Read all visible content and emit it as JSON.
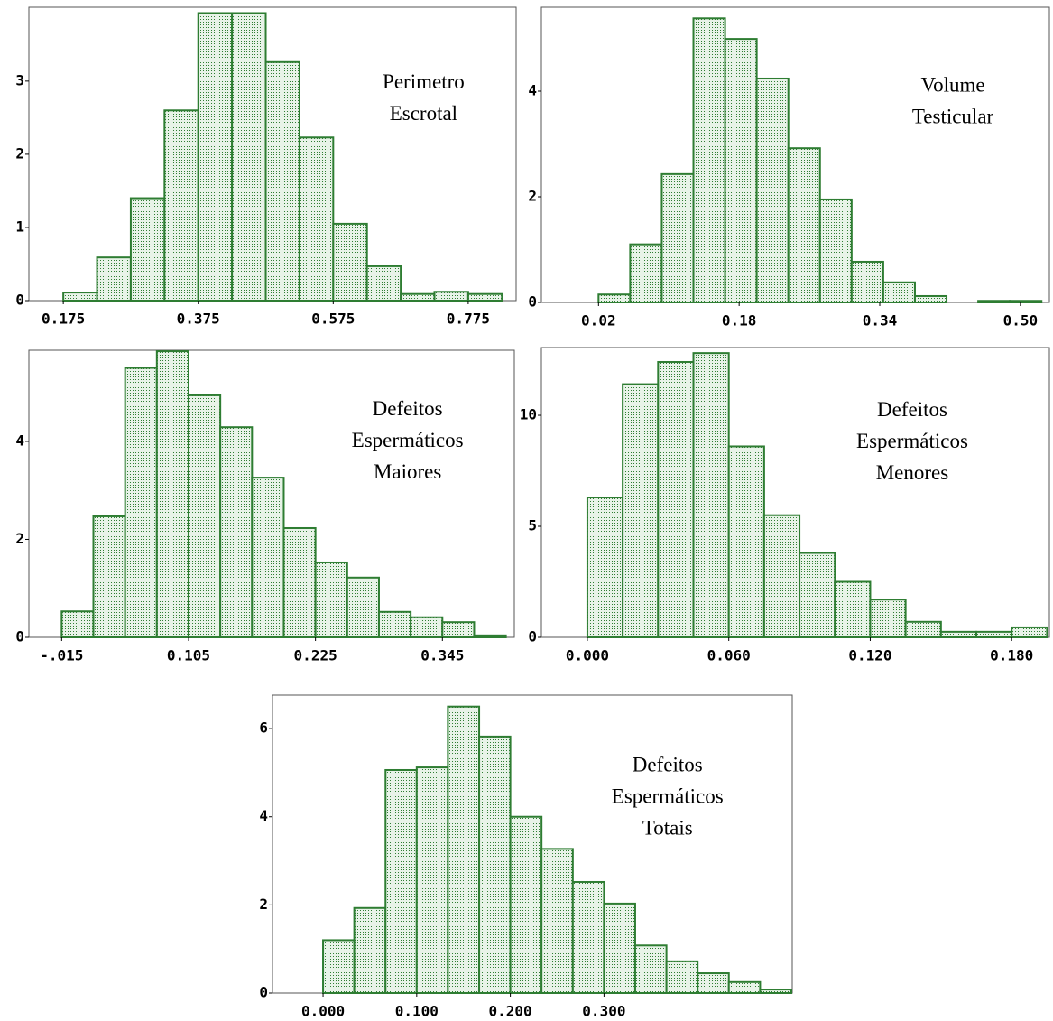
{
  "chart_data": [
    {
      "type": "histogram",
      "annotation": [
        "Perimetro",
        "Escrotal"
      ],
      "color": "#2e7d32",
      "bins": [
        0.175,
        0.225,
        0.275,
        0.325,
        0.375,
        0.425,
        0.475,
        0.525,
        0.575,
        0.625,
        0.675,
        0.725,
        0.775,
        0.825
      ],
      "values": [
        0.11,
        0.59,
        1.4,
        2.6,
        3.93,
        3.93,
        3.26,
        2.23,
        1.05,
        0.47,
        0.09,
        0.12,
        0.09
      ],
      "xlim": [
        0.124,
        0.846
      ],
      "ylim": [
        0,
        4.01
      ],
      "xticks": [
        0.175,
        0.375,
        0.575,
        0.775
      ],
      "yticks": [
        0,
        1,
        2,
        3
      ]
    },
    {
      "type": "histogram",
      "annotation": [
        "Volume",
        "Testicular"
      ],
      "color": "#2e7d32",
      "bins": [
        0.02,
        0.056,
        0.092,
        0.128,
        0.164,
        0.2,
        0.236,
        0.272,
        0.308,
        0.344,
        0.38,
        0.416,
        0.452,
        0.488,
        0.524
      ],
      "values": [
        0.15,
        1.1,
        2.43,
        5.38,
        4.99,
        4.24,
        2.92,
        1.95,
        0.77,
        0.38,
        0.12,
        0,
        0.03,
        0.03
      ],
      "xlim": [
        -0.045,
        0.533
      ],
      "ylim": [
        0,
        5.59
      ],
      "xticks": [
        0.02,
        0.18,
        0.34,
        {
          "value": 0.5,
          "label": "0.50"
        }
      ],
      "yticks": [
        0,
        2,
        4
      ]
    },
    {
      "type": "histogram",
      "annotation": [
        "Defeitos",
        "Espermáticos",
        "Maiores"
      ],
      "color": "#2e7d32",
      "bins": [
        -0.015,
        0.015,
        0.045,
        0.075,
        0.105,
        0.135,
        0.165,
        0.195,
        0.225,
        0.255,
        0.285,
        0.315,
        0.345,
        0.375,
        0.405
      ],
      "values": [
        0.53,
        2.47,
        5.5,
        5.84,
        4.94,
        4.29,
        3.26,
        2.23,
        1.53,
        1.22,
        0.52,
        0.41,
        0.31,
        0.04
      ],
      "xlim": [
        -0.046,
        0.413
      ],
      "ylim": [
        0,
        5.86
      ],
      "xticks": [
        {
          "value": -0.015,
          "label": "-.015"
        },
        0.105,
        0.225,
        0.345
      ],
      "yticks": [
        0,
        2,
        4
      ]
    },
    {
      "type": "histogram",
      "annotation": [
        "Defeitos",
        "Espermáticos",
        "Menores"
      ],
      "color": "#2e7d32",
      "bins": [
        0,
        0.015,
        0.03,
        0.045,
        0.06,
        0.075,
        0.09,
        0.105,
        0.12,
        0.135,
        0.15,
        0.165,
        0.18,
        0.195
      ],
      "values": [
        6.3,
        11.4,
        12.4,
        12.8,
        8.6,
        5.5,
        3.8,
        2.5,
        1.7,
        0.7,
        0.25,
        0.25,
        0.45
      ],
      "xlim": [
        -0.0195,
        0.196
      ],
      "ylim": [
        0,
        13.05
      ],
      "xticks": [
        {
          "value": 0,
          "label": "0.000"
        },
        {
          "value": 0.06,
          "label": "0.060"
        },
        {
          "value": 0.12,
          "label": "0.120"
        },
        {
          "value": 0.18,
          "label": "0.180"
        }
      ],
      "yticks": [
        0,
        5,
        10
      ]
    },
    {
      "type": "histogram",
      "annotation": [
        "Defeitos",
        "Espermáticos",
        "Totais"
      ],
      "color": "#2e7d32",
      "bins": [
        0,
        0.0333,
        0.0667,
        0.1,
        0.1333,
        0.1667,
        0.2,
        0.2333,
        0.2667,
        0.3,
        0.3333,
        0.3667,
        0.4,
        0.4333,
        0.4667,
        0.5
      ],
      "values": [
        1.2,
        1.93,
        5.06,
        5.12,
        6.5,
        5.82,
        4.0,
        3.27,
        2.52,
        2.03,
        1.08,
        0.72,
        0.45,
        0.25,
        0.08
      ],
      "xlim": [
        -0.054,
        0.501
      ],
      "ylim": [
        0,
        6.76
      ],
      "xticks": [
        {
          "value": 0,
          "label": "0.000"
        },
        {
          "value": 0.1,
          "label": "0.100"
        },
        {
          "value": 0.2,
          "label": "0.200"
        },
        {
          "value": 0.3,
          "label": "0.300"
        }
      ],
      "yticks": [
        0,
        2,
        4,
        6
      ]
    }
  ]
}
